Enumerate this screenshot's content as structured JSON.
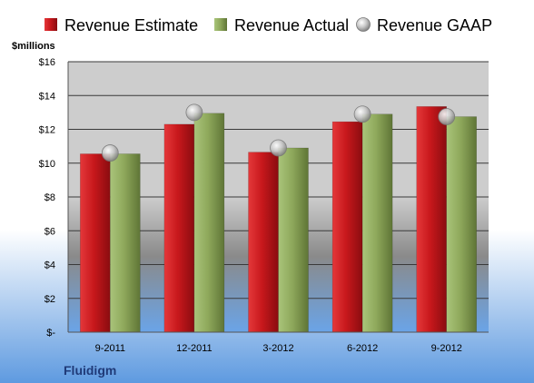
{
  "chart_data": {
    "type": "bar",
    "categories": [
      "9-2011",
      "12-2011",
      "3-2012",
      "6-2012",
      "9-2012"
    ],
    "series": [
      {
        "name": "Revenue Estimate",
        "kind": "bar",
        "color": "#c8181c",
        "values": [
          10.55,
          12.3,
          10.65,
          12.45,
          13.35
        ]
      },
      {
        "name": "Revenue Actual",
        "kind": "bar",
        "color": "#8fa95c",
        "values": [
          10.55,
          12.95,
          10.9,
          12.9,
          12.75
        ]
      },
      {
        "name": "Revenue GAAP",
        "kind": "marker",
        "color": "#c8c8c8",
        "values": [
          10.6,
          13.0,
          10.9,
          12.9,
          12.75
        ]
      }
    ],
    "ylabel": "$millions",
    "ylim": [
      0,
      16
    ],
    "yticks": [
      0,
      2,
      4,
      6,
      8,
      10,
      12,
      14,
      16
    ],
    "ytick_labels": [
      "$-",
      "$2",
      "$4",
      "$6",
      "$8",
      "$10",
      "$12",
      "$14",
      "$16"
    ],
    "grid": true,
    "legend_position": "top",
    "company": "Fluidigm",
    "colors": {
      "background_top": "#ffffff",
      "background_bottom": "#5e9ae0",
      "plot_top": "#cdcdcd",
      "plot_mid": "#8a8a8a",
      "plot_bottom": "#6aa4e8",
      "company_text": "#1f3a78"
    }
  }
}
